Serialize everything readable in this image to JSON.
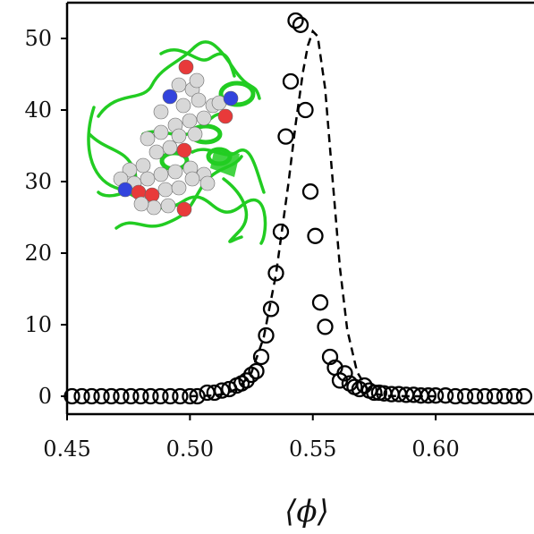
{
  "chart_data": {
    "type": "scatter",
    "title": "",
    "xlabel": "⟨ϕ⟩",
    "ylabel": "",
    "xlim": [
      0.45,
      0.64
    ],
    "ylim": [
      -2.5,
      55
    ],
    "x_ticks": [
      {
        "value": 0.45,
        "label": "0.45"
      },
      {
        "value": 0.5,
        "label": "0.50"
      },
      {
        "value": 0.55,
        "label": "0.55"
      },
      {
        "value": 0.6,
        "label": "0.60"
      }
    ],
    "y_ticks": [
      {
        "value": 0,
        "label": "0"
      },
      {
        "value": 10,
        "label": "10"
      },
      {
        "value": 20,
        "label": "20"
      },
      {
        "value": 30,
        "label": "30"
      },
      {
        "value": 40,
        "label": "40"
      },
      {
        "value": 50,
        "label": "50"
      }
    ],
    "grid": false,
    "series": [
      {
        "marker": "open-circle",
        "color": "#000000",
        "x": [
          0.452,
          0.456,
          0.46,
          0.464,
          0.468,
          0.472,
          0.476,
          0.48,
          0.484,
          0.488,
          0.492,
          0.496,
          0.5,
          0.503,
          0.507,
          0.51,
          0.513,
          0.516,
          0.519,
          0.521,
          0.523,
          0.525,
          0.527,
          0.529,
          0.531,
          0.533,
          0.535,
          0.537,
          0.539,
          0.541,
          0.543,
          0.545,
          0.547,
          0.549,
          0.551,
          0.553,
          0.555,
          0.557,
          0.559,
          0.561,
          0.563,
          0.565,
          0.567,
          0.569,
          0.571,
          0.573,
          0.575,
          0.577,
          0.579,
          0.582,
          0.585,
          0.588,
          0.591,
          0.594,
          0.597,
          0.6,
          0.604,
          0.608,
          0.612,
          0.616,
          0.62,
          0.624,
          0.628,
          0.632,
          0.636
        ],
        "y": [
          0,
          0,
          0,
          0,
          0,
          0,
          0,
          0,
          0,
          0,
          0,
          0,
          0,
          0,
          0.5,
          0.5,
          0.8,
          1.0,
          1.5,
          1.8,
          2.2,
          3.0,
          3.5,
          5.5,
          8.5,
          12.2,
          17.2,
          23.0,
          36.3,
          44.0,
          52.5,
          51.9,
          40.0,
          28.6,
          22.4,
          13.1,
          9.7,
          5.5,
          4.0,
          2.2,
          3.2,
          1.8,
          1.3,
          1.0,
          1.5,
          0.8,
          0.5,
          0.5,
          0.4,
          0.3,
          0.3,
          0.2,
          0.2,
          0.1,
          0.1,
          0.1,
          0.1,
          0,
          0,
          0,
          0,
          0,
          0,
          0,
          0
        ]
      },
      {
        "style": "dashed-line",
        "color": "#000000",
        "x": [
          0.5,
          0.51,
          0.515,
          0.52,
          0.525,
          0.53,
          0.535,
          0.54,
          0.543,
          0.546,
          0.548,
          0.55,
          0.552,
          0.555,
          0.558,
          0.561,
          0.564,
          0.568,
          0.572,
          0.576,
          0.58,
          0.59,
          0.6
        ],
        "y": [
          0,
          0.1,
          0.4,
          1.2,
          3.3,
          8.2,
          17.0,
          29.6,
          38.0,
          45.3,
          49.0,
          51.0,
          50.3,
          43.0,
          30.5,
          18.0,
          9.3,
          3.4,
          1.1,
          0.3,
          0.05,
          0,
          0
        ]
      }
    ]
  },
  "inset": {
    "name": "protein-structure-image",
    "colors": {
      "ribbon": "#22cc22",
      "carbon": "#d8d8d8",
      "oxygen": "#e83a3a",
      "nitrogen": "#3344dd"
    }
  }
}
